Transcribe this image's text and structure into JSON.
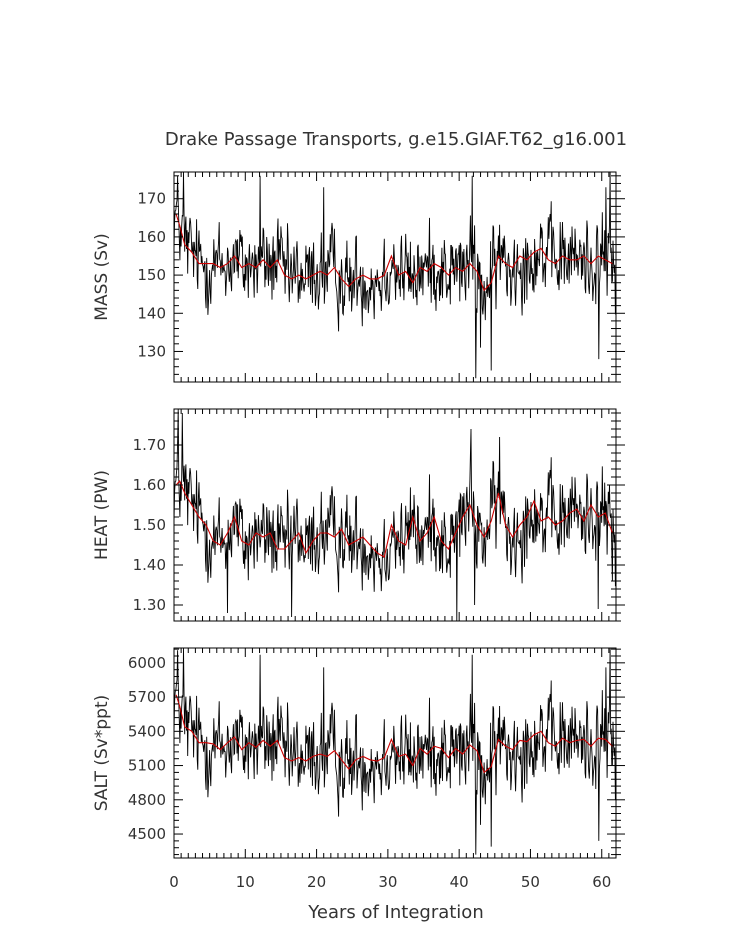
{
  "chart_data": {
    "type": "line",
    "title": "Drake Passage Transports, g.e15.GIAF.T62_g16.001",
    "xlabel": "Years of Integration",
    "xlim": [
      0,
      62
    ],
    "xticks": [
      0,
      10,
      20,
      30,
      40,
      50,
      60
    ],
    "series_colors": {
      "monthly": "#000000",
      "annual": "#cc0000"
    },
    "panels": [
      {
        "id": "mass",
        "ylabel": "MASS (Sv)",
        "ylim": [
          122,
          177
        ],
        "yticks": [
          130,
          140,
          150,
          160,
          170
        ],
        "ytick_labels": [
          "130",
          "140",
          "150",
          "160",
          "170"
        ],
        "noise": 6.5,
        "spikes": [
          [
            0.5,
            176
          ],
          [
            1.3,
            177
          ],
          [
            12.1,
            176
          ],
          [
            21,
            173
          ],
          [
            41.8,
            176
          ],
          [
            42.3,
            123
          ],
          [
            43,
            131
          ],
          [
            44.5,
            125
          ],
          [
            59.6,
            128
          ],
          [
            60.6,
            173
          ],
          [
            61.2,
            177
          ]
        ],
        "annual": [
          [
            0.3,
            166
          ],
          [
            0.8,
            163
          ],
          [
            1.5,
            158
          ],
          [
            2.5,
            156
          ],
          [
            3.5,
            153
          ],
          [
            4.5,
            153
          ],
          [
            5.5,
            153
          ],
          [
            6.5,
            152
          ],
          [
            7.5,
            153
          ],
          [
            8.5,
            155
          ],
          [
            9.5,
            152
          ],
          [
            10.5,
            153
          ],
          [
            11.5,
            152
          ],
          [
            12.5,
            154
          ],
          [
            13.5,
            152
          ],
          [
            14.5,
            154
          ],
          [
            15.5,
            150
          ],
          [
            16.5,
            149
          ],
          [
            17.5,
            150
          ],
          [
            18.5,
            149
          ],
          [
            19.5,
            150
          ],
          [
            20.5,
            151
          ],
          [
            21.5,
            150
          ],
          [
            22.5,
            152
          ],
          [
            23.5,
            149
          ],
          [
            24.5,
            147
          ],
          [
            25.5,
            149
          ],
          [
            26.5,
            150
          ],
          [
            27.5,
            149
          ],
          [
            28.5,
            149
          ],
          [
            29.5,
            150
          ],
          [
            30.5,
            155
          ],
          [
            31.5,
            150
          ],
          [
            32.5,
            151
          ],
          [
            33.5,
            148
          ],
          [
            34.5,
            152
          ],
          [
            35.5,
            151
          ],
          [
            36.5,
            153
          ],
          [
            37.5,
            152
          ],
          [
            38.5,
            150
          ],
          [
            39.5,
            152
          ],
          [
            40.5,
            151
          ],
          [
            41.5,
            153
          ],
          [
            42.5,
            151
          ],
          [
            43.5,
            146
          ],
          [
            44.5,
            148
          ],
          [
            45.5,
            155
          ],
          [
            46.5,
            153
          ],
          [
            47.5,
            152
          ],
          [
            48.5,
            155
          ],
          [
            49.5,
            154
          ],
          [
            50.5,
            156
          ],
          [
            51.5,
            157
          ],
          [
            52.5,
            154
          ],
          [
            53.5,
            153
          ],
          [
            54.5,
            155
          ],
          [
            55.5,
            154
          ],
          [
            56.5,
            154
          ],
          [
            57.5,
            155
          ],
          [
            58.5,
            153
          ],
          [
            59.5,
            155
          ],
          [
            60.5,
            154
          ],
          [
            61.5,
            153
          ]
        ]
      },
      {
        "id": "heat",
        "ylabel": "HEAT (PW)",
        "ylim": [
          1.26,
          1.79
        ],
        "yticks": [
          1.3,
          1.4,
          1.5,
          1.6,
          1.7
        ],
        "ytick_labels": [
          "1.30",
          "1.40",
          "1.50",
          "1.60",
          "1.70"
        ],
        "noise": 0.065,
        "spikes": [
          [
            0.6,
            1.79
          ],
          [
            1.2,
            1.78
          ],
          [
            7.5,
            1.28
          ],
          [
            16.5,
            1.27
          ],
          [
            39.7,
            1.26
          ],
          [
            41.7,
            1.74
          ],
          [
            42.2,
            1.3
          ],
          [
            45.7,
            1.72
          ],
          [
            59.5,
            1.29
          ],
          [
            61.5,
            1.36
          ]
        ],
        "annual": [
          [
            0.3,
            1.6
          ],
          [
            0.8,
            1.61
          ],
          [
            1.5,
            1.58
          ],
          [
            2.5,
            1.55
          ],
          [
            3.5,
            1.52
          ],
          [
            4.5,
            1.5
          ],
          [
            5.5,
            1.46
          ],
          [
            6.5,
            1.45
          ],
          [
            7.5,
            1.48
          ],
          [
            8.5,
            1.52
          ],
          [
            9.5,
            1.46
          ],
          [
            10.5,
            1.45
          ],
          [
            11.5,
            1.48
          ],
          [
            12.5,
            1.47
          ],
          [
            13.5,
            1.48
          ],
          [
            14.5,
            1.44
          ],
          [
            15.5,
            1.44
          ],
          [
            16.5,
            1.46
          ],
          [
            17.5,
            1.48
          ],
          [
            18.5,
            1.43
          ],
          [
            19.5,
            1.46
          ],
          [
            20.5,
            1.48
          ],
          [
            21.5,
            1.48
          ],
          [
            22.5,
            1.47
          ],
          [
            23.5,
            1.49
          ],
          [
            24.5,
            1.45
          ],
          [
            25.5,
            1.46
          ],
          [
            26.5,
            1.47
          ],
          [
            27.5,
            1.45
          ],
          [
            28.5,
            1.43
          ],
          [
            29.5,
            1.42
          ],
          [
            30.5,
            1.5
          ],
          [
            31.5,
            1.46
          ],
          [
            32.5,
            1.45
          ],
          [
            33.5,
            1.52
          ],
          [
            34.5,
            1.46
          ],
          [
            35.5,
            1.48
          ],
          [
            36.5,
            1.52
          ],
          [
            37.5,
            1.46
          ],
          [
            38.5,
            1.44
          ],
          [
            39.5,
            1.48
          ],
          [
            40.5,
            1.52
          ],
          [
            41.5,
            1.55
          ],
          [
            42.5,
            1.5
          ],
          [
            43.5,
            1.47
          ],
          [
            44.5,
            1.51
          ],
          [
            45.5,
            1.58
          ],
          [
            46.5,
            1.5
          ],
          [
            47.5,
            1.47
          ],
          [
            48.5,
            1.5
          ],
          [
            49.5,
            1.52
          ],
          [
            50.5,
            1.56
          ],
          [
            51.5,
            1.51
          ],
          [
            52.5,
            1.52
          ],
          [
            53.5,
            1.5
          ],
          [
            54.5,
            1.51
          ],
          [
            55.5,
            1.53
          ],
          [
            56.5,
            1.54
          ],
          [
            57.5,
            1.51
          ],
          [
            58.5,
            1.55
          ],
          [
            59.5,
            1.52
          ],
          [
            60.5,
            1.53
          ],
          [
            61.5,
            1.48
          ]
        ]
      },
      {
        "id": "salt",
        "ylabel": "SALT (Sv*ppt)",
        "ylim": [
          4290,
          6130
        ],
        "yticks": [
          4500,
          4800,
          5100,
          5400,
          5700,
          6000
        ],
        "ytick_labels": [
          "4500",
          "4800",
          "5100",
          "5400",
          "5700",
          "6000"
        ],
        "noise": 230,
        "spikes": [
          [
            0.5,
            6110
          ],
          [
            1.3,
            6130
          ],
          [
            12.1,
            6070
          ],
          [
            21,
            5960
          ],
          [
            41.8,
            6070
          ],
          [
            42.3,
            4320
          ],
          [
            43,
            4580
          ],
          [
            44.5,
            4390
          ],
          [
            59.6,
            4440
          ],
          [
            60.6,
            5960
          ],
          [
            61.2,
            6130
          ]
        ],
        "annual": [
          [
            0.3,
            5720
          ],
          [
            0.8,
            5620
          ],
          [
            1.5,
            5440
          ],
          [
            2.5,
            5400
          ],
          [
            3.5,
            5300
          ],
          [
            4.5,
            5300
          ],
          [
            5.5,
            5290
          ],
          [
            6.5,
            5240
          ],
          [
            7.5,
            5300
          ],
          [
            8.5,
            5350
          ],
          [
            9.5,
            5240
          ],
          [
            10.5,
            5300
          ],
          [
            11.5,
            5260
          ],
          [
            12.5,
            5320
          ],
          [
            13.5,
            5270
          ],
          [
            14.5,
            5320
          ],
          [
            15.5,
            5170
          ],
          [
            16.5,
            5140
          ],
          [
            17.5,
            5170
          ],
          [
            18.5,
            5140
          ],
          [
            19.5,
            5180
          ],
          [
            20.5,
            5200
          ],
          [
            21.5,
            5180
          ],
          [
            22.5,
            5230
          ],
          [
            23.5,
            5150
          ],
          [
            24.5,
            5070
          ],
          [
            25.5,
            5150
          ],
          [
            26.5,
            5180
          ],
          [
            27.5,
            5150
          ],
          [
            28.5,
            5140
          ],
          [
            29.5,
            5170
          ],
          [
            30.5,
            5330
          ],
          [
            31.5,
            5180
          ],
          [
            32.5,
            5200
          ],
          [
            33.5,
            5100
          ],
          [
            34.5,
            5250
          ],
          [
            35.5,
            5200
          ],
          [
            36.5,
            5270
          ],
          [
            37.5,
            5250
          ],
          [
            38.5,
            5170
          ],
          [
            39.5,
            5250
          ],
          [
            40.5,
            5200
          ],
          [
            41.5,
            5280
          ],
          [
            42.5,
            5230
          ],
          [
            43.5,
            5040
          ],
          [
            44.5,
            5090
          ],
          [
            45.5,
            5330
          ],
          [
            46.5,
            5270
          ],
          [
            47.5,
            5240
          ],
          [
            48.5,
            5320
          ],
          [
            49.5,
            5310
          ],
          [
            50.5,
            5370
          ],
          [
            51.5,
            5400
          ],
          [
            52.5,
            5300
          ],
          [
            53.5,
            5270
          ],
          [
            54.5,
            5340
          ],
          [
            55.5,
            5300
          ],
          [
            56.5,
            5320
          ],
          [
            57.5,
            5330
          ],
          [
            58.5,
            5270
          ],
          [
            59.5,
            5340
          ],
          [
            60.5,
            5330
          ],
          [
            61.5,
            5270
          ]
        ]
      }
    ]
  }
}
